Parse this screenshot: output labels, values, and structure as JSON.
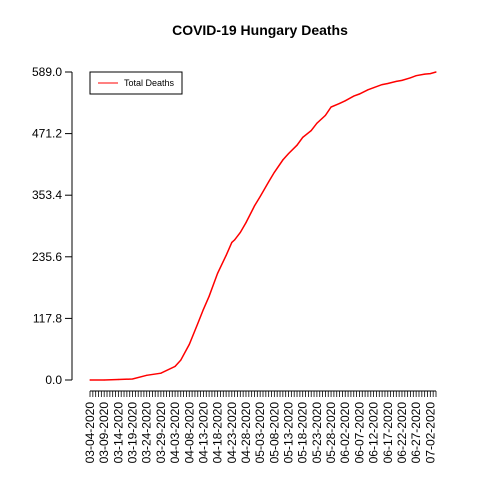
{
  "chart_data": {
    "type": "line",
    "title": "COVID-19 Hungary Deaths",
    "xlabel": "",
    "ylabel": "",
    "ylim": [
      0,
      589.0
    ],
    "y_ticks": [
      "0.0",
      "117.8",
      "235.6",
      "353.4",
      "471.2",
      "589.0"
    ],
    "x_start": "03-04-2020",
    "x_end": "07-04-2020",
    "x_tick_labels": [
      "03-04-2020",
      "03-09-2020",
      "03-14-2020",
      "03-19-2020",
      "03-24-2020",
      "03-29-2020",
      "04-03-2020",
      "04-08-2020",
      "04-13-2020",
      "04-18-2020",
      "04-23-2020",
      "04-28-2020",
      "05-03-2020",
      "05-08-2020",
      "05-13-2020",
      "05-18-2020",
      "05-23-2020",
      "05-28-2020",
      "06-02-2020",
      "06-07-2020",
      "06-12-2020",
      "06-17-2020",
      "06-22-2020",
      "06-27-2020",
      "07-02-2020"
    ],
    "legend": {
      "position": "top-left",
      "entries": [
        "Total Deaths"
      ]
    },
    "series": [
      {
        "name": "Total Deaths",
        "color": "#ff0000",
        "x": [
          "03-04-2020",
          "03-09-2020",
          "03-14-2020",
          "03-19-2020",
          "03-24-2020",
          "03-29-2020",
          "04-03-2020",
          "04-05-2020",
          "04-08-2020",
          "04-11-2020",
          "04-13-2020",
          "04-15-2020",
          "04-18-2020",
          "04-21-2020",
          "04-23-2020",
          "04-24-2020",
          "04-26-2020",
          "04-28-2020",
          "05-01-2020",
          "05-03-2020",
          "05-06-2020",
          "05-08-2020",
          "05-11-2020",
          "05-13-2020",
          "05-16-2020",
          "05-18-2020",
          "05-21-2020",
          "05-23-2020",
          "05-26-2020",
          "05-28-2020",
          "05-31-2020",
          "06-02-2020",
          "06-05-2020",
          "06-07-2020",
          "06-10-2020",
          "06-12-2020",
          "06-15-2020",
          "06-17-2020",
          "06-20-2020",
          "06-22-2020",
          "06-25-2020",
          "06-27-2020",
          "06-30-2020",
          "07-02-2020",
          "07-04-2020"
        ],
        "y": [
          0,
          0,
          1,
          2,
          9,
          13,
          26,
          38,
          68,
          108,
          135,
          160,
          204,
          238,
          263,
          268,
          282,
          301,
          333,
          351,
          379,
          397,
          421,
          433,
          449,
          464,
          477,
          491,
          506,
          522,
          529,
          534,
          543,
          547,
          555,
          559,
          565,
          567,
          571,
          573,
          578,
          582,
          585,
          586,
          589
        ]
      }
    ]
  }
}
